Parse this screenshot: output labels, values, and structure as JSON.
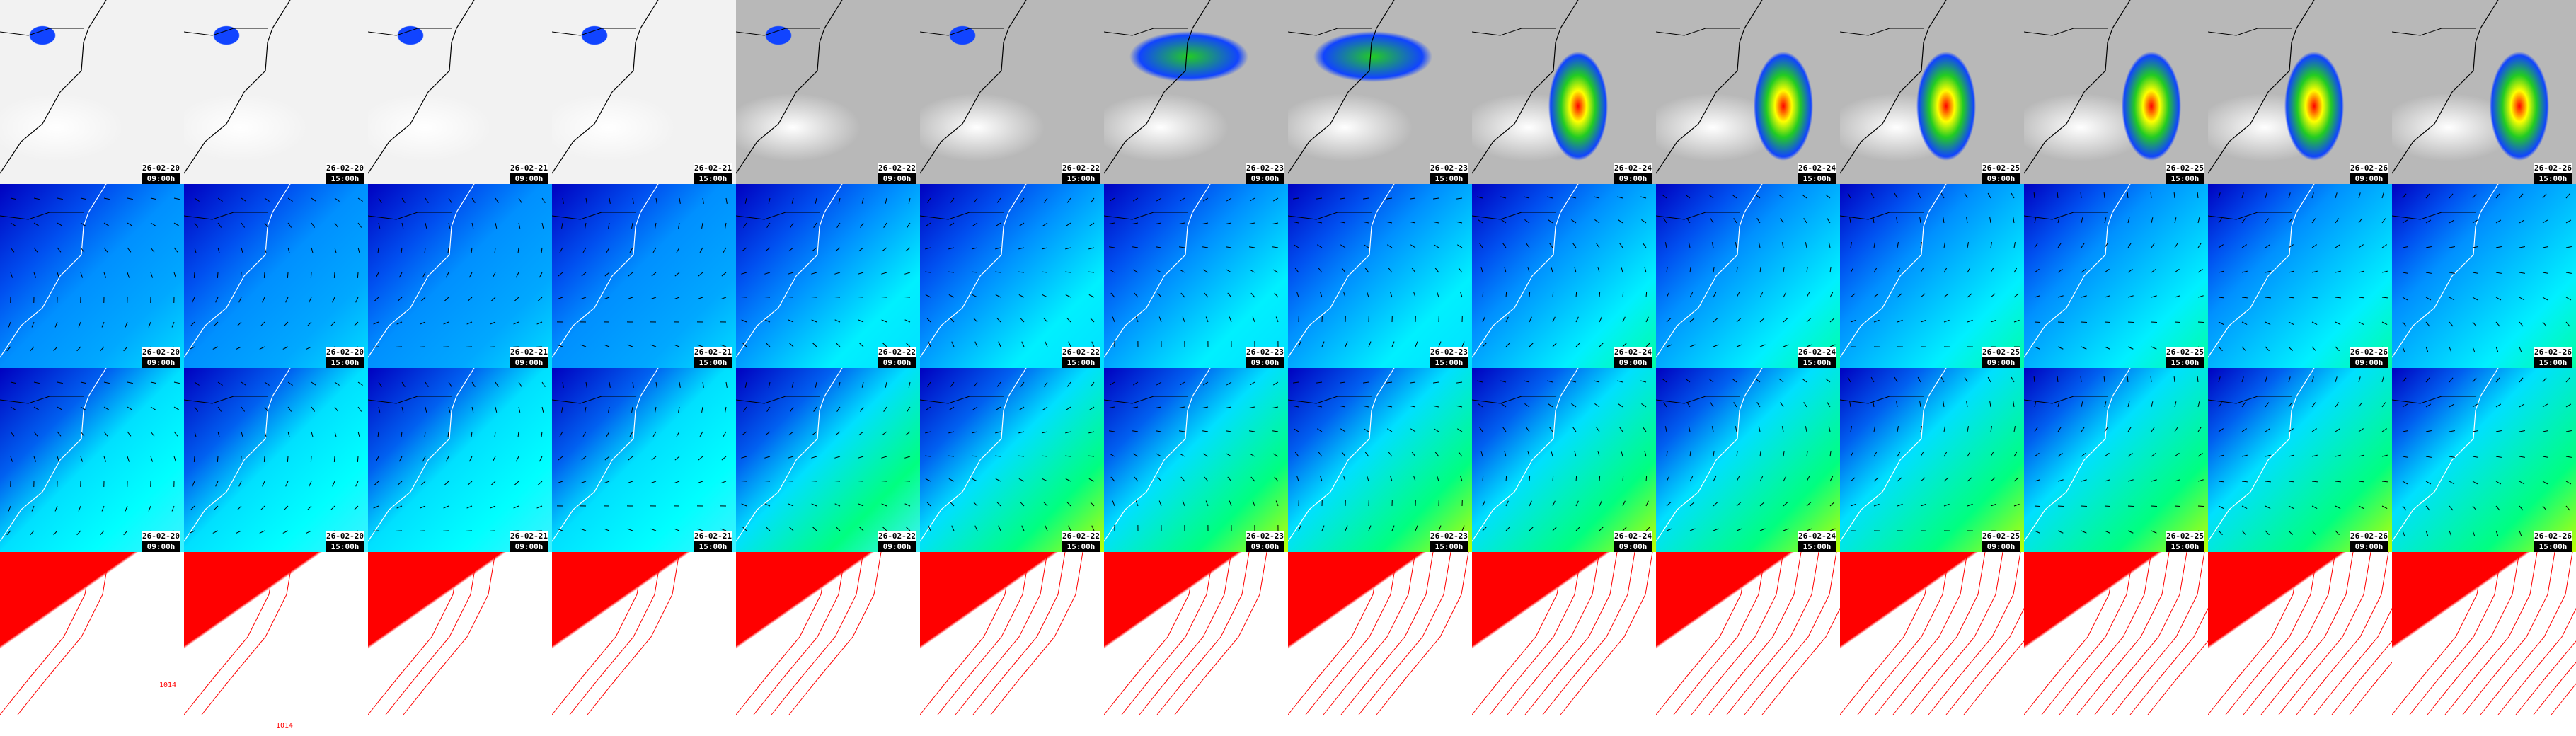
{
  "columns": [
    {
      "date": "26-02-20",
      "time": "09:00h"
    },
    {
      "date": "26-02-20",
      "time": "15:00h"
    },
    {
      "date": "26-02-21",
      "time": "09:00h"
    },
    {
      "date": "26-02-21",
      "time": "15:00h"
    },
    {
      "date": "26-02-22",
      "time": "09:00h"
    },
    {
      "date": "26-02-22",
      "time": "15:00h"
    },
    {
      "date": "26-02-23",
      "time": "09:00h"
    },
    {
      "date": "26-02-23",
      "time": "15:00h"
    },
    {
      "date": "26-02-24",
      "time": "09:00h"
    },
    {
      "date": "26-02-24",
      "time": "15:00h"
    },
    {
      "date": "26-02-25",
      "time": "09:00h"
    },
    {
      "date": "26-02-25",
      "time": "15:00h"
    },
    {
      "date": "26-02-26",
      "time": "09:00h"
    },
    {
      "date": "26-02-26",
      "time": "15:00h"
    }
  ],
  "labeled_rows": 3,
  "isobar_labels": [
    "1014",
    "1014"
  ],
  "colors": {
    "coast": "#000000",
    "isobar": "#ff0000",
    "precip_bg": "#b4b4b4"
  }
}
